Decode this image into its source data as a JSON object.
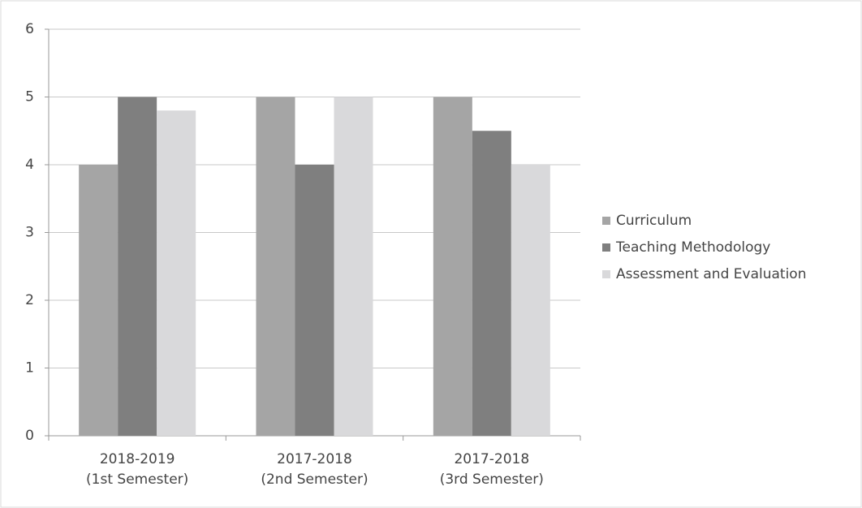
{
  "chart_data": {
    "type": "bar",
    "categories": [
      [
        "2018-2019",
        "(1st Semester)"
      ],
      [
        "2017-2018",
        "(2nd Semester)"
      ],
      [
        "2017-2018",
        "(3rd Semester)"
      ]
    ],
    "series": [
      {
        "name": "Curriculum",
        "color": "#a5a5a5",
        "values": [
          4,
          5,
          5
        ]
      },
      {
        "name": "Teaching Methodology",
        "color": "#7f7f7f",
        "values": [
          5,
          4,
          4.5
        ]
      },
      {
        "name": "Assessment and Evaluation",
        "color": "#d9d9db",
        "values": [
          4.8,
          5,
          4
        ]
      }
    ],
    "ylim": [
      0,
      6
    ],
    "yticks": [
      0,
      1,
      2,
      3,
      4,
      5,
      6
    ],
    "grid": true,
    "legend": "right"
  }
}
